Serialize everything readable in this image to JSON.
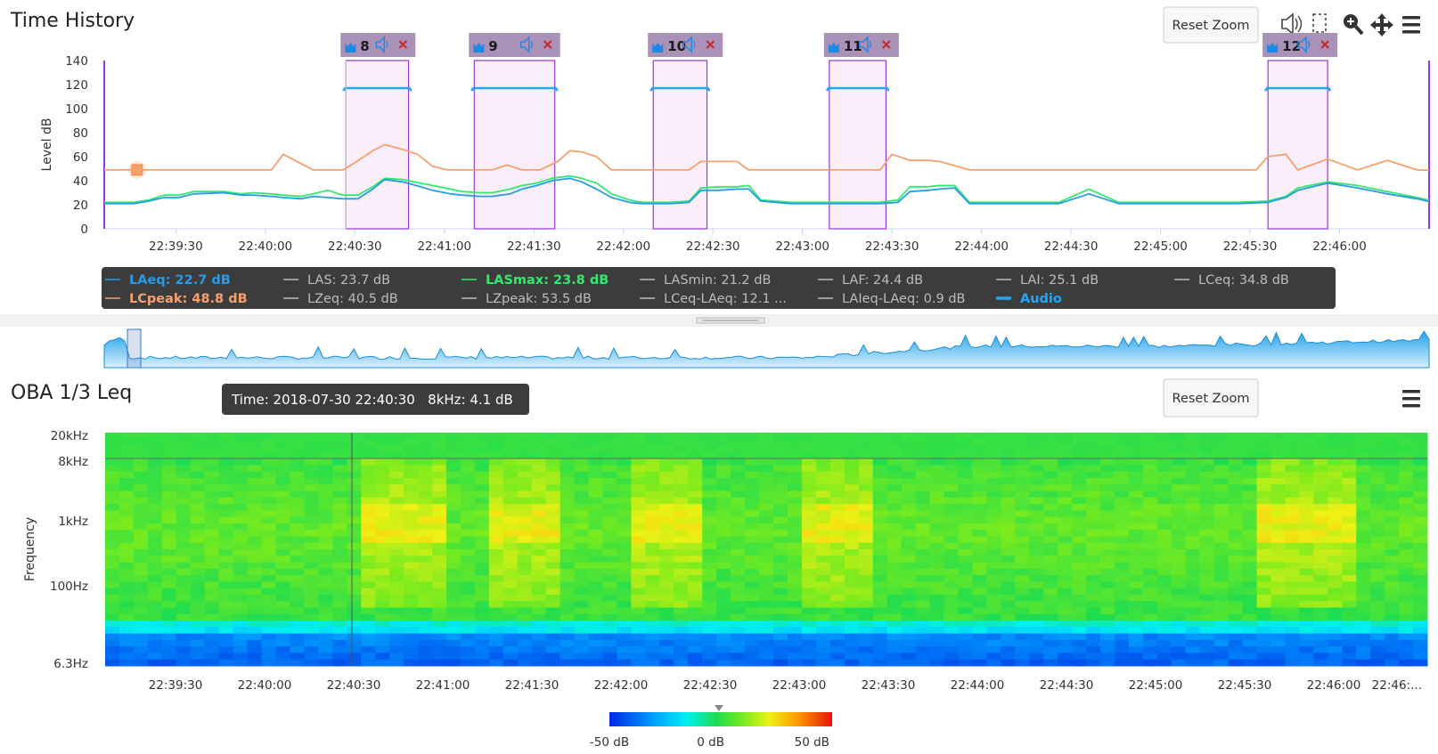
{
  "colors": {
    "laeq": "#2a9be5",
    "lcpeak": "#f7a06c",
    "lasmax": "#33e86c",
    "audio": "#1fa8f5",
    "band_fill": "#fbeefb",
    "band_stroke": "#9b36d6",
    "band_header": "#a991b8",
    "legend_bg": "#3c3c3c"
  },
  "time_history": {
    "title": "Time History",
    "reset_zoom": "Reset Zoom",
    "icons": [
      "audio-speaker-icon",
      "select-icon",
      "zoom-icon",
      "pan-icon",
      "menu-icon"
    ],
    "chart_data": {
      "type": "line",
      "ylabel": "Level dB",
      "ylim": [
        0,
        140
      ],
      "yticks": [
        "0",
        "20",
        "40",
        "60",
        "80",
        "100",
        "120",
        "140"
      ],
      "xlim": [
        "22:39:06",
        "22:46:30"
      ],
      "xticks": [
        "22:39:30",
        "22:40:00",
        "22:40:30",
        "22:41:00",
        "22:41:30",
        "22:42:00",
        "22:42:30",
        "22:43:00",
        "22:43:30",
        "22:44:00",
        "22:44:30",
        "22:45:00",
        "22:45:30",
        "22:46:00"
      ],
      "series": [
        {
          "name": "LCpeak",
          "color": "#f7a06c",
          "x": [
            0,
            10,
            20,
            30,
            40,
            50,
            56,
            60,
            70,
            76,
            80,
            84,
            90,
            94,
            100,
            105,
            110,
            115,
            120,
            130,
            135,
            140,
            146,
            152,
            156,
            160,
            165,
            170,
            176,
            180,
            185,
            190,
            196,
            200,
            206,
            212,
            216,
            220,
            230,
            240,
            250,
            260,
            264,
            270,
            276,
            280,
            290,
            300,
            310,
            316,
            320,
            330,
            340,
            350,
            360,
            370,
            380,
            386,
            390,
            396,
            400,
            410,
            420,
            430,
            440,
            444
          ],
          "y": [
            49,
            49,
            49,
            49,
            49,
            49,
            49,
            62,
            49,
            49,
            49,
            55,
            65,
            70,
            66,
            62,
            52,
            49,
            49,
            49,
            53,
            49,
            49,
            56,
            65,
            64,
            60,
            49,
            49,
            49,
            49,
            49,
            49,
            56,
            56,
            56,
            49,
            49,
            49,
            49,
            49,
            49,
            62,
            57,
            57,
            56,
            49,
            49,
            49,
            49,
            49,
            49,
            49,
            49,
            49,
            49,
            49,
            49,
            60,
            62,
            49,
            58,
            49,
            57,
            49,
            48.8
          ]
        },
        {
          "name": "LASmax",
          "color": "#33e86c",
          "x": [
            0,
            10,
            15,
            20,
            25,
            30,
            40,
            46,
            50,
            56,
            60,
            66,
            70,
            75,
            80,
            85,
            90,
            94,
            100,
            106,
            110,
            116,
            120,
            126,
            130,
            136,
            140,
            145,
            150,
            156,
            160,
            165,
            170,
            176,
            180,
            186,
            190,
            196,
            200,
            206,
            212,
            216,
            220,
            230,
            240,
            250,
            260,
            266,
            270,
            276,
            280,
            285,
            290,
            300,
            310,
            320,
            330,
            340,
            350,
            360,
            370,
            380,
            390,
            396,
            400,
            410,
            420,
            430,
            440,
            444
          ],
          "y": [
            22,
            22,
            24,
            28,
            28,
            31,
            31,
            29,
            30,
            29,
            28,
            27,
            29,
            32,
            28,
            28,
            35,
            42,
            41,
            38,
            36,
            33,
            31,
            30,
            30,
            33,
            36,
            38,
            42,
            44,
            42,
            38,
            29,
            24,
            22,
            22,
            22,
            23,
            34,
            35,
            35,
            36,
            24,
            22,
            22,
            22,
            22,
            24,
            35,
            35,
            36,
            36,
            22,
            22,
            22,
            22,
            33,
            22,
            22,
            22,
            22,
            22,
            23,
            27,
            34,
            39,
            36,
            31,
            26,
            23.8
          ]
        },
        {
          "name": "LAeq",
          "color": "#2a9be5",
          "x": [
            0,
            10,
            15,
            20,
            25,
            30,
            40,
            46,
            50,
            56,
            60,
            66,
            70,
            75,
            80,
            85,
            90,
            94,
            100,
            106,
            110,
            116,
            120,
            126,
            130,
            136,
            140,
            145,
            150,
            156,
            160,
            165,
            170,
            176,
            180,
            186,
            190,
            196,
            200,
            206,
            212,
            216,
            220,
            230,
            240,
            250,
            260,
            266,
            270,
            276,
            280,
            285,
            290,
            300,
            310,
            320,
            330,
            340,
            350,
            360,
            370,
            380,
            390,
            396,
            400,
            410,
            420,
            430,
            440,
            444
          ],
          "y": [
            21,
            21,
            23,
            26,
            26,
            29,
            30,
            28,
            28,
            27,
            26,
            25,
            27,
            26,
            25,
            25,
            33,
            41,
            39,
            35,
            32,
            29,
            28,
            27,
            27,
            29,
            33,
            36,
            40,
            42,
            39,
            33,
            26,
            22,
            21,
            21,
            21,
            22,
            32,
            32,
            33,
            33,
            23,
            21,
            21,
            21,
            21,
            22,
            31,
            32,
            33,
            34,
            21,
            21,
            21,
            21,
            29,
            21,
            21,
            21,
            21,
            21,
            22,
            26,
            32,
            38,
            34,
            29,
            25,
            22.7
          ]
        }
      ],
      "audio_bands": [
        {
          "id": "8",
          "x0": 81,
          "x1": 102
        },
        {
          "id": "9",
          "x0": 124,
          "x1": 151
        },
        {
          "id": "10",
          "x0": 184,
          "x1": 202
        },
        {
          "id": "11",
          "x0": 243,
          "x1": 262
        },
        {
          "id": "12",
          "x0": 390,
          "x1": 410
        }
      ],
      "audio_level": 117,
      "marker": {
        "x": 11,
        "y": 49
      },
      "crosshair_x": 81
    },
    "legend": [
      [
        {
          "label": "LAeq: 22.7 dB",
          "color": "#2a9be5",
          "active": true
        },
        {
          "label": "LAS: 23.7 dB",
          "color": "#bdbdbd",
          "active": false
        },
        {
          "label": "LASmax: 23.8 dB",
          "color": "#33e86c",
          "active": true
        },
        {
          "label": "LASmin: 21.2 dB",
          "color": "#bdbdbd",
          "active": false
        },
        {
          "label": "LAF: 24.4 dB",
          "color": "#bdbdbd",
          "active": false
        },
        {
          "label": "LAI: 25.1 dB",
          "color": "#bdbdbd",
          "active": false
        },
        {
          "label": "LCeq: 34.8 dB",
          "color": "#bdbdbd",
          "active": false
        }
      ],
      [
        {
          "label": "LCpeak: 48.8 dB",
          "color": "#f7a06c",
          "active": true
        },
        {
          "label": "LZeq: 40.5 dB",
          "color": "#bdbdbd",
          "active": false
        },
        {
          "label": "LZpeak: 53.5 dB",
          "color": "#bdbdbd",
          "active": false
        },
        {
          "label": "LCeq-LAeq: 12.1 ...",
          "color": "#bdbdbd",
          "active": false
        },
        {
          "label": "LAIeq-LAeq: 0.9 dB",
          "color": "#bdbdbd",
          "active": false
        },
        {
          "label": "Audio",
          "color": "#1fa8f5",
          "active": true
        }
      ]
    ]
  },
  "oba": {
    "title": "OBA 1/3 Leq",
    "reset_zoom": "Reset Zoom",
    "tooltip": "Time: 2018-07-30 22:40:30   8kHz: 4.1 dB",
    "chart_data": {
      "type": "heatmap",
      "ylabel": "Frequency",
      "yticks": [
        "20kHz",
        "8kHz",
        "1kHz",
        "100Hz",
        "6.3Hz"
      ],
      "xticks": [
        "22:39:30",
        "22:40:00",
        "22:40:30",
        "22:41:00",
        "22:41:30",
        "22:42:00",
        "22:42:30",
        "22:43:00",
        "22:43:30",
        "22:44:00",
        "22:44:30",
        "22:45:00",
        "22:45:30",
        "22:46:00",
        "22:46:..."
      ],
      "colorbar": {
        "min_label": "-50 dB",
        "mid_label": "0 dB",
        "max_label": "50 dB",
        "range": [
          -50,
          60
        ],
        "pointer": 4.1
      }
    }
  }
}
